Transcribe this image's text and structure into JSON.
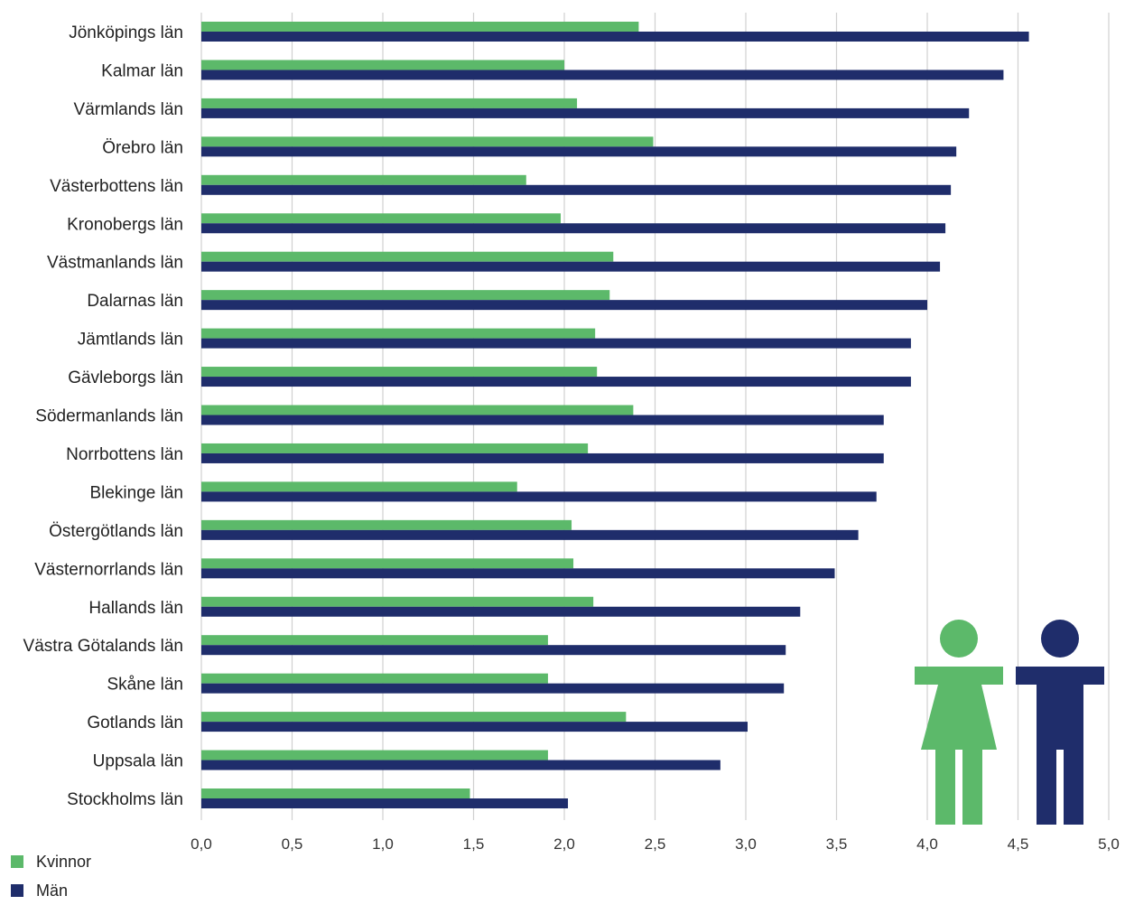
{
  "chart_data": {
    "type": "bar",
    "orientation": "horizontal",
    "categories": [
      "Jönköpings län",
      "Kalmar län",
      "Värmlands län",
      "Örebro län",
      "Västerbottens län",
      "Kronobergs län",
      "Västmanlands län",
      "Dalarnas län",
      "Jämtlands län",
      "Gävleborgs län",
      "Södermanlands län",
      "Norrbottens län",
      "Blekinge län",
      "Östergötlands län",
      "Västernorrlands län",
      "Hallands län",
      "Västra Götalands län",
      "Skåne län",
      "Gotlands län",
      "Uppsala län",
      "Stockholms län"
    ],
    "series": [
      {
        "name": "Kvinnor",
        "color": "#5cb96a",
        "values": [
          2.41,
          2.0,
          2.07,
          2.49,
          1.79,
          1.98,
          2.27,
          2.25,
          2.17,
          2.18,
          2.38,
          2.13,
          1.74,
          2.04,
          2.05,
          2.16,
          1.91,
          1.91,
          2.34,
          1.91,
          1.48
        ]
      },
      {
        "name": "Män",
        "color": "#1f2d6b",
        "values": [
          4.56,
          4.42,
          4.23,
          4.16,
          4.13,
          4.1,
          4.07,
          4.0,
          3.91,
          3.91,
          3.76,
          3.76,
          3.72,
          3.62,
          3.49,
          3.3,
          3.22,
          3.21,
          3.01,
          2.86,
          2.02
        ]
      }
    ],
    "xlim": [
      0,
      5
    ],
    "ticks": [
      "0,0",
      "0,5",
      "1,0",
      "1,5",
      "2,0",
      "2,5",
      "3,0",
      "3,5",
      "4,0",
      "4,5",
      "5,0"
    ],
    "tick_values": [
      0,
      0.5,
      1,
      1.5,
      2,
      2.5,
      3,
      3.5,
      4,
      4.5,
      5
    ],
    "grid": true,
    "legend_position": "bottom-left",
    "title": "",
    "xlabel": "",
    "ylabel": ""
  },
  "icons": {
    "female": {
      "name": "female-figure-icon",
      "color": "#5cb96a"
    },
    "male": {
      "name": "male-figure-icon",
      "color": "#1f2d6b"
    }
  },
  "colors": {
    "grid": "#d0d0d0",
    "text": "#222222"
  }
}
